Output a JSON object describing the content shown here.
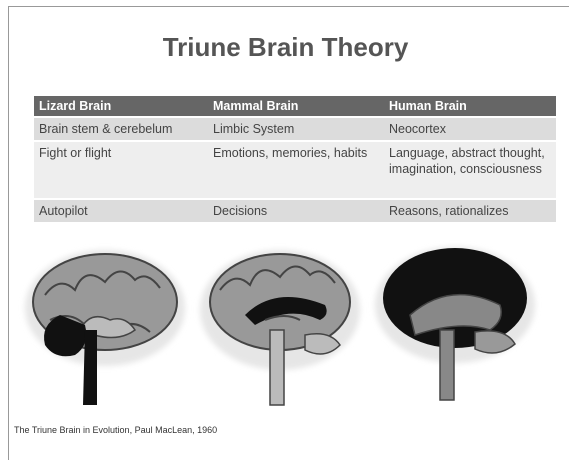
{
  "title": "Triune Brain Theory",
  "table": {
    "header": [
      "Lizard Brain",
      "Mammal Brain",
      "Human Brain"
    ],
    "rows": [
      [
        "Brain stem & cerebelum",
        "Limbic System",
        "Neocortex"
      ],
      [
        "Fight or flight",
        "Emotions, memories, habits",
        "Language, abstract thought, imagination, consciousness"
      ],
      [
        "Autopilot",
        "Decisions",
        "Reasons, rationalizes"
      ]
    ]
  },
  "caption": "The Triune Brain in Evolution, Paul MacLean, 1960"
}
